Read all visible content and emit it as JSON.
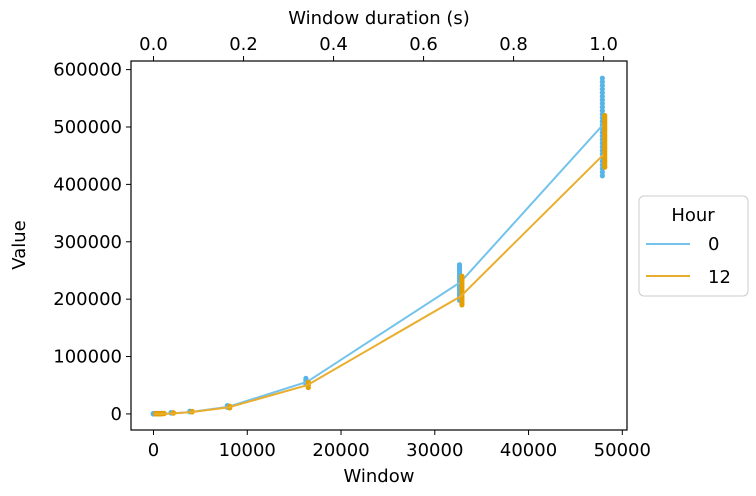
{
  "chart_data": {
    "type": "scatter",
    "xlabel": "Window",
    "ylabel": "Value",
    "top_xlabel": "Window duration (s)",
    "xlim": [
      -2400,
      50500
    ],
    "ylim": [
      -28000,
      615000
    ],
    "top_xlim": [
      -0.05,
      1.052
    ],
    "xticks": [
      0,
      10000,
      20000,
      30000,
      40000,
      50000
    ],
    "xtick_labels": [
      "0",
      "10000",
      "20000",
      "30000",
      "40000",
      "50000"
    ],
    "yticks": [
      0,
      100000,
      200000,
      300000,
      400000,
      500000,
      600000
    ],
    "ytick_labels": [
      "0",
      "100000",
      "200000",
      "300000",
      "400000",
      "500000",
      "600000"
    ],
    "top_xticks": [
      0.0,
      0.2,
      0.4,
      0.6,
      0.8,
      1.0
    ],
    "top_xtick_labels": [
      "0.0",
      "0.2",
      "0.4",
      "0.6",
      "0.8",
      "1.0"
    ],
    "grid": false,
    "legend": {
      "title": "Hour",
      "placement": "outside-right",
      "entries": [
        "0",
        "12"
      ]
    },
    "series": [
      {
        "name": "0",
        "color": "#56B4E9",
        "fit_line_color": "#74C3EC",
        "windows": [
          100,
          200,
          300,
          500,
          700,
          1000,
          2000,
          4000,
          8000,
          16384,
          32768,
          48000
        ],
        "min_values": [
          0,
          0,
          0,
          0,
          0,
          500,
          1500,
          3800,
          11500,
          52000,
          198000,
          415000
        ],
        "max_values": [
          800,
          800,
          800,
          900,
          1000,
          1200,
          2300,
          4800,
          14500,
          62000,
          260000,
          585000
        ],
        "fit_values": [
          0,
          0,
          0,
          0,
          0,
          0,
          900,
          3400,
          12500,
          56000,
          230000,
          505000
        ]
      },
      {
        "name": "12",
        "color": "#E69F00",
        "fit_line_color": "#EAAE2E",
        "windows": [
          100,
          200,
          300,
          500,
          700,
          1000,
          2000,
          4000,
          8000,
          16384,
          32768,
          48000
        ],
        "min_values": [
          0,
          0,
          0,
          0,
          0,
          400,
          1400,
          3500,
          10500,
          46000,
          190000,
          430000
        ],
        "max_values": [
          700,
          700,
          700,
          800,
          900,
          1100,
          2100,
          4400,
          13500,
          55000,
          240000,
          520000
        ],
        "fit_values": [
          0,
          0,
          0,
          0,
          0,
          0,
          800,
          3100,
          11500,
          50000,
          205000,
          452000
        ]
      }
    ]
  }
}
